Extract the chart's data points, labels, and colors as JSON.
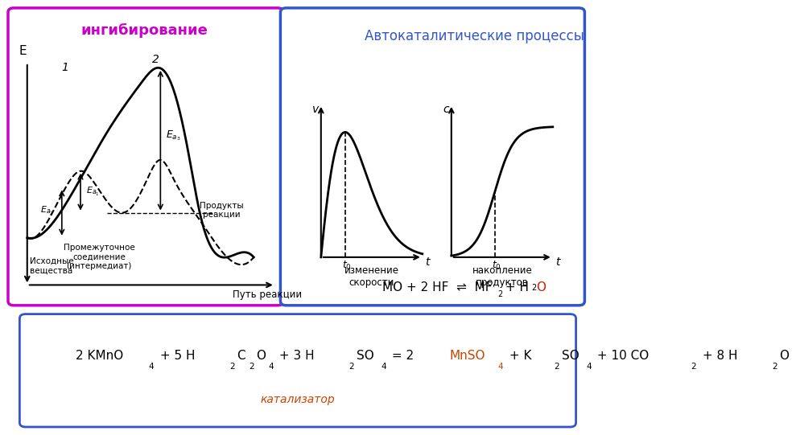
{
  "title_inhibition": "ингибирование",
  "title_autocatalytic": "Автокаталитические процессы",
  "label_izmenenie": "изменение\nскорости",
  "label_nakoplenie": "накопление\nпродуктов",
  "label_put": "Путь реакции",
  "label_v": "v",
  "label_c": "c",
  "label_t": "t",
  "label_t0": "t₀",
  "label_E": "E",
  "label_1": "1",
  "label_2": "2",
  "label_Ea1": "Eₐ₁",
  "label_Ea2": "Eₐ₂",
  "label_Ea3": "Eₐ₃",
  "label_ishodnye": "Исходные\nвещества",
  "label_promezhutochnoe": "Промежуточное\nсоединение\n(интермедиат)",
  "label_produkty": "Продукты\nреакции",
  "eq_main": "MO + 2 HF ⇌ MF₂ + H₂O",
  "eq_bottom": "2 KMnO₄ + 5 H₂C₂O₄ + 3 H₂SO₄ = 2 MnSO₄ + K₂SO₄ + 10 CO₂ + 8 H₂O",
  "label_katalizator": "катализатор",
  "color_magenta": "#cc00cc",
  "color_blue": "#3355cc",
  "color_red": "#cc2200",
  "color_orange": "#cc4400",
  "color_black": "#000000",
  "color_bg": "#ffffff"
}
